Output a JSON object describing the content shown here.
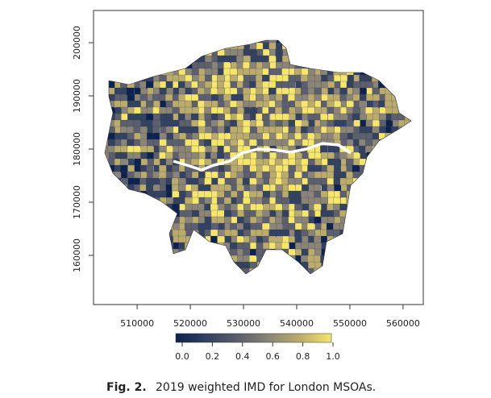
{
  "chart_data": {
    "type": "map",
    "xlim": [
      501800,
      563800
    ],
    "xticks": [
      510000,
      520000,
      530000,
      540000,
      550000,
      560000
    ],
    "ylim": [
      150760,
      206060
    ],
    "yticks": [
      160000,
      170000,
      180000,
      190000,
      200000
    ],
    "colorbar": {
      "lim": [
        0,
        1
      ],
      "ticks": [
        {
          "value": 0,
          "label": "0.0"
        },
        {
          "value": 0.2,
          "label": "0.2"
        },
        {
          "value": 0.4,
          "label": "0.4"
        },
        {
          "value": 0.6,
          "label": "0.6"
        },
        {
          "value": 0.8,
          "label": "0.8"
        },
        {
          "value": 1,
          "label": "1.0"
        }
      ],
      "colormap": [
        "#0c2350",
        "#33425f",
        "#5c5f6d",
        "#8a8576",
        "#bcac6c",
        "#f6e66c"
      ]
    },
    "caption": {
      "label": "Fig. 2.",
      "text": "2019 weighted IMD for London MSOAs."
    }
  }
}
